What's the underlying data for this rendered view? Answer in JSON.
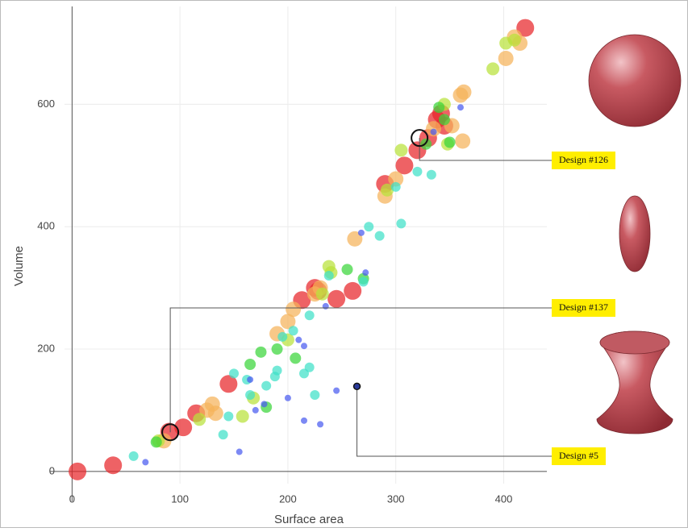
{
  "chart_data": {
    "type": "scatter",
    "x_label": "Surface area",
    "y_label": "Volume",
    "xlim": [
      -7,
      440
    ],
    "ylim": [
      -20,
      760
    ],
    "xticks": [
      0,
      100,
      200,
      300,
      400
    ],
    "yticks": [
      0,
      200,
      400,
      600
    ],
    "grid": true,
    "series": [
      {
        "color": "#e8262a",
        "x": [
          5,
          38,
          90,
          103,
          115,
          145,
          213,
          228,
          245,
          260,
          290,
          308,
          320,
          330,
          338,
          342,
          345,
          420,
          225
        ],
        "y": [
          0,
          10,
          65,
          72,
          95,
          143,
          280,
          295,
          282,
          295,
          470,
          500,
          525,
          545,
          575,
          585,
          565,
          725,
          300
        ]
      },
      {
        "color": "#f5b35a",
        "x": [
          85,
          125,
          130,
          133,
          190,
          200,
          205,
          230,
          262,
          290,
          300,
          335,
          352,
          360,
          363,
          362,
          402,
          410,
          415,
          225
        ],
        "y": [
          50,
          100,
          110,
          95,
          225,
          245,
          265,
          300,
          380,
          450,
          478,
          560,
          565,
          615,
          620,
          540,
          675,
          710,
          700,
          290
        ]
      },
      {
        "color": "#b8e23a",
        "x": [
          80,
          118,
          158,
          168,
          200,
          232,
          238,
          240,
          292,
          305,
          345,
          348,
          390,
          402,
          410
        ],
        "y": [
          50,
          85,
          90,
          120,
          215,
          290,
          335,
          325,
          460,
          525,
          600,
          535,
          658,
          700,
          705
        ]
      },
      {
        "color": "#3ad63a",
        "x": [
          78,
          165,
          175,
          180,
          190,
          207,
          255,
          270,
          328,
          340,
          350,
          345
        ],
        "y": [
          48,
          175,
          195,
          105,
          200,
          185,
          330,
          315,
          535,
          595,
          538,
          575
        ]
      },
      {
        "color": "#3ee0c8",
        "x": [
          57,
          140,
          145,
          150,
          162,
          165,
          180,
          188,
          190,
          195,
          205,
          220,
          215,
          220,
          225,
          238,
          300,
          305,
          320,
          333,
          270,
          285,
          275
        ],
        "y": [
          25,
          60,
          90,
          160,
          150,
          125,
          140,
          155,
          165,
          220,
          230,
          255,
          160,
          170,
          125,
          320,
          465,
          405,
          490,
          485,
          310,
          385,
          400
        ]
      },
      {
        "color": "#4a5cf0",
        "x": [
          68,
          155,
          165,
          170,
          178,
          200,
          210,
          215,
          215,
          230,
          235,
          245,
          272,
          268,
          360,
          335
        ],
        "y": [
          15,
          32,
          150,
          100,
          110,
          120,
          215,
          205,
          83,
          77,
          270,
          132,
          325,
          390,
          595,
          555
        ]
      }
    ],
    "annotations": [
      {
        "text": "Design #126",
        "x": 322,
        "y": 545
      },
      {
        "text": "Design #137",
        "x": 91,
        "y": 64
      },
      {
        "text": "Design #5",
        "x": 264,
        "y": 139
      }
    ]
  }
}
